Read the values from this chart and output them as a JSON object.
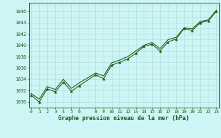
{
  "title": "Graphe pression niveau de la mer (hPa)",
  "bg_color": "#cef5f5",
  "grid_color": "#b0dede",
  "line_color": "#1a5c1a",
  "ylabel_ticks": [
    1030,
    1032,
    1034,
    1036,
    1038,
    1040,
    1042,
    1044,
    1046
  ],
  "xlabel_ticks": [
    0,
    1,
    2,
    3,
    4,
    5,
    6,
    8,
    9,
    10,
    11,
    12,
    13,
    14,
    15,
    16,
    17,
    18,
    19,
    20,
    21,
    22,
    23
  ],
  "xlim": [
    -0.3,
    23.3
  ],
  "ylim": [
    1029.0,
    1047.5
  ],
  "hours": [
    0,
    1,
    2,
    3,
    4,
    5,
    6,
    8,
    9,
    10,
    11,
    12,
    13,
    14,
    15,
    16,
    17,
    18,
    19,
    20,
    21,
    22,
    23
  ],
  "p1": [
    1031.2,
    1030.0,
    1032.3,
    1031.8,
    1033.5,
    1031.9,
    1032.9,
    1034.8,
    1034.1,
    1036.5,
    1037.0,
    1037.6,
    1038.6,
    1039.8,
    1040.2,
    1039.0,
    1040.6,
    1041.1,
    1043.0,
    1042.6,
    1044.0,
    1044.3,
    1046.0
  ],
  "p2": [
    1031.5,
    1030.5,
    1032.7,
    1032.2,
    1034.0,
    1032.4,
    1033.4,
    1035.1,
    1034.6,
    1036.9,
    1037.4,
    1038.0,
    1039.0,
    1040.0,
    1040.5,
    1039.4,
    1041.0,
    1041.4,
    1043.1,
    1042.9,
    1044.2,
    1044.5,
    1046.2
  ]
}
